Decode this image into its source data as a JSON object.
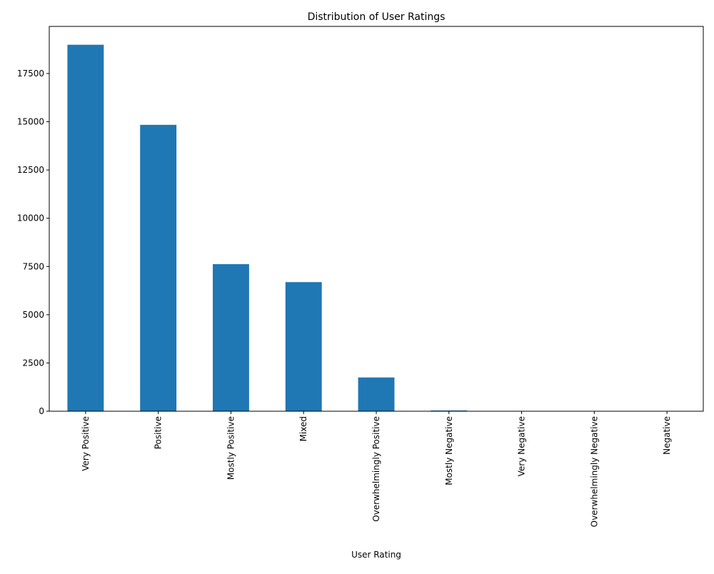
{
  "chart_data": {
    "type": "bar",
    "title": "Distribution of User Ratings",
    "xlabel": "User Rating",
    "ylabel": "",
    "categories": [
      "Very Positive",
      "Positive",
      "Mostly Positive",
      "Mixed",
      "Overwhelmingly Positive",
      "Mostly Negative",
      "Very Negative",
      "Overwhelmingly Negative",
      "Negative"
    ],
    "values": [
      18990,
      14840,
      7620,
      6690,
      1750,
      40,
      2,
      1,
      1
    ],
    "ylim": [
      0,
      19940
    ],
    "yticks": [
      0,
      2500,
      5000,
      7500,
      10000,
      12500,
      15000,
      17500
    ],
    "bar_color": "#1f77b4",
    "grid": false,
    "legend": "none"
  }
}
